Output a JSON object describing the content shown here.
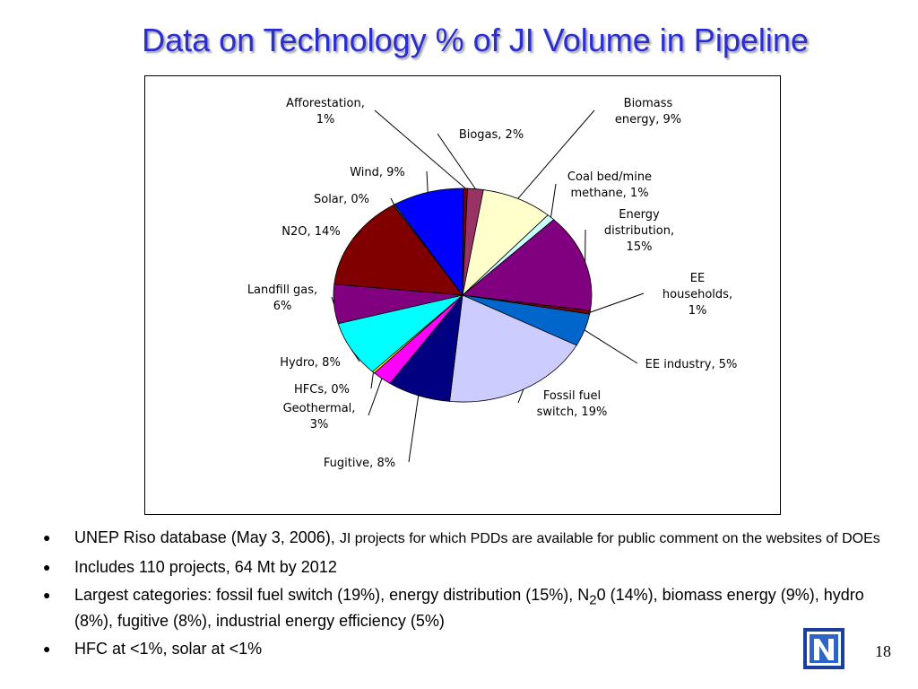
{
  "slide": {
    "title": "Data on Technology % of JI Volume in Pipeline",
    "page_number": "18"
  },
  "bullets": [
    {
      "main": "UNEP Riso database (May 3, 2006), ",
      "small": "JI projects for which PDDs are available for public comment on the websites of DOEs"
    },
    {
      "main": "Includes 110 projects, 64 Mt by 2012",
      "small": ""
    },
    {
      "pre": "Largest categories: fossil fuel switch (19%), energy distribution (15%), N",
      "sub": "2",
      "post": "0 (14%), biomass energy (9%), hydro (8%), fugitive (8%), industrial energy efficiency (5%)"
    },
    {
      "main": "HFC at <1%, solar at <1%",
      "small": ""
    }
  ],
  "chart_data": {
    "type": "pie",
    "title": "",
    "slices": [
      {
        "label": [
          "Afforestation,",
          "1%"
        ],
        "value": 0.5,
        "color": "#800000"
      },
      {
        "label": [
          "Biogas, 2%"
        ],
        "value": 2,
        "color": "#993366"
      },
      {
        "label": [
          "Biomass",
          "energy, 9%"
        ],
        "value": 9,
        "color": "#ffffcc"
      },
      {
        "label": [
          "Coal bed/mine",
          "methane, 1%"
        ],
        "value": 1,
        "color": "#ccffff"
      },
      {
        "label": [
          "Energy",
          "distribution,",
          "15%"
        ],
        "value": 15,
        "color": "#800080"
      },
      {
        "label": [
          "EE",
          "households,",
          "1%"
        ],
        "value": 0.5,
        "color": "#800000"
      },
      {
        "label": [
          "EE industry, 5%"
        ],
        "value": 5,
        "color": "#0066cc"
      },
      {
        "label": [
          "Fossil fuel",
          "switch, 19%"
        ],
        "value": 19,
        "color": "#ccccff"
      },
      {
        "label": [
          "Fugitive, 8%"
        ],
        "value": 8,
        "color": "#000080"
      },
      {
        "label": [
          "Geothermal,",
          "3%"
        ],
        "value": 2.5,
        "color": "#ff00ff"
      },
      {
        "label": [
          "HFCs, 0%"
        ],
        "value": 0.3,
        "color": "#ffff00"
      },
      {
        "label": [
          "Hydro, 8%"
        ],
        "value": 8.5,
        "color": "#00ffff"
      },
      {
        "label": [
          "Landfill gas,",
          "6%"
        ],
        "value": 6,
        "color": "#800080"
      },
      {
        "label": [
          "N2O, 14%"
        ],
        "value": 14.5,
        "color": "#800000"
      },
      {
        "label": [
          "Solar, 0%"
        ],
        "value": 0.2,
        "color": "#008080"
      },
      {
        "label": [
          "Wind, 9%"
        ],
        "value": 9,
        "color": "#0000ff"
      }
    ]
  }
}
